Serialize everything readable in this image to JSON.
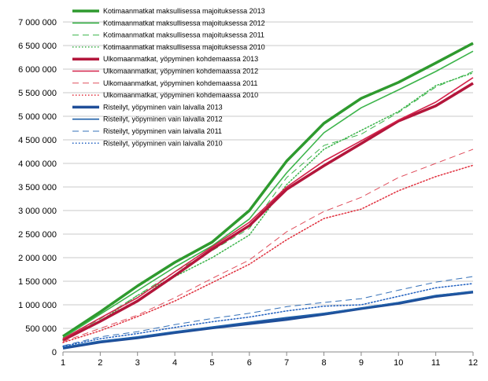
{
  "chart_data": {
    "type": "line",
    "title": "",
    "xlabel": "",
    "ylabel": "",
    "x": [
      1,
      2,
      3,
      4,
      5,
      6,
      7,
      8,
      9,
      10,
      11,
      12
    ],
    "x_tick_labels": [
      "1",
      "2",
      "3",
      "4",
      "5",
      "6",
      "7",
      "8",
      "9",
      "10",
      "11",
      "12"
    ],
    "xlim": [
      1,
      12
    ],
    "ylim": [
      0,
      7000000
    ],
    "y_ticks": [
      0,
      500000,
      1000000,
      1500000,
      2000000,
      2500000,
      3000000,
      3500000,
      4000000,
      4500000,
      5000000,
      5500000,
      6000000,
      6500000,
      7000000
    ],
    "y_tick_labels": [
      "0",
      "500 000",
      "1 000 000",
      "1 500 000",
      "2 000 000",
      "2 500 000",
      "3 000 000",
      "3 500 000",
      "4 000 000",
      "4 500 000",
      "5 000 000",
      "5 500 000",
      "6 000 000",
      "6 500 000",
      "7 000 000"
    ],
    "grid": true,
    "legend_position": "top-left inside",
    "series": [
      {
        "name": "Kotimaanmatkat maksullisessa majoituksessa 2013",
        "color": "#2e9a2e",
        "style": "solid-thick",
        "values": [
          330000,
          850000,
          1400000,
          1900000,
          2330000,
          3000000,
          4050000,
          4850000,
          5380000,
          5720000,
          6130000,
          6550000
        ]
      },
      {
        "name": "Kotimaanmatkat maksullisessa majoituksessa 2012",
        "color": "#3cb44b",
        "style": "solid",
        "values": [
          300000,
          800000,
          1300000,
          1800000,
          2250000,
          2820000,
          3800000,
          4650000,
          5180000,
          5560000,
          5950000,
          6380000
        ]
      },
      {
        "name": "Kotimaanmatkat maksullisessa majoituksessa 2011",
        "color": "#3cb44b",
        "style": "dashed",
        "values": [
          280000,
          700000,
          1200000,
          1700000,
          2150000,
          2620000,
          3700000,
          4380000,
          4620000,
          5080000,
          5620000,
          5950000
        ]
      },
      {
        "name": "Kotimaanmatkat maksullisessa majoituksessa 2010",
        "color": "#3cb44b",
        "style": "dotted",
        "values": [
          250000,
          650000,
          1200000,
          1600000,
          2000000,
          2480000,
          3550000,
          4300000,
          4700000,
          5100000,
          5650000,
          5920000
        ]
      },
      {
        "name": "Ulkomaanmatkat, yöpyminen kohdemaassa 2013",
        "color": "#b3163b",
        "style": "solid-thick",
        "values": [
          250000,
          650000,
          1080000,
          1620000,
          2180000,
          2680000,
          3450000,
          3950000,
          4420000,
          4900000,
          5220000,
          5700000
        ]
      },
      {
        "name": "Ulkomaanmatkat, yöpyminen kohdemaassa 2012",
        "color": "#d4224a",
        "style": "solid",
        "values": [
          280000,
          720000,
          1150000,
          1700000,
          2230000,
          2750000,
          3500000,
          4050000,
          4480000,
          4920000,
          5300000,
          5820000
        ]
      },
      {
        "name": "Ulkomaanmatkat, yöpyminen kohdemaassa 2011",
        "color": "#e0505e",
        "style": "dashed",
        "values": [
          220000,
          500000,
          780000,
          1150000,
          1560000,
          1950000,
          2550000,
          2980000,
          3280000,
          3700000,
          4000000,
          4300000
        ]
      },
      {
        "name": "Ulkomaanmatkat, yöpyminen kohdemaassa 2010",
        "color": "#e0303e",
        "style": "dotted",
        "values": [
          200000,
          450000,
          750000,
          1080000,
          1470000,
          1860000,
          2380000,
          2830000,
          3030000,
          3420000,
          3720000,
          3960000
        ]
      },
      {
        "name": "Risteilyt, yöpyminen vain laivalla 2013",
        "color": "#1f4e99",
        "style": "solid-thick",
        "values": [
          80000,
          210000,
          300000,
          410000,
          510000,
          600000,
          690000,
          800000,
          920000,
          1030000,
          1180000,
          1270000
        ]
      },
      {
        "name": "Risteilyt, yöpyminen vain laivalla 2012",
        "color": "#1f5fa8",
        "style": "solid",
        "values": [
          100000,
          230000,
          320000,
          430000,
          530000,
          630000,
          730000,
          820000,
          930000,
          1050000,
          1200000,
          1280000
        ]
      },
      {
        "name": "Risteilyt, yöpyminen vain laivalla 2011",
        "color": "#3470b8",
        "style": "dashed",
        "values": [
          130000,
          320000,
          430000,
          580000,
          710000,
          820000,
          960000,
          1050000,
          1130000,
          1310000,
          1480000,
          1600000
        ]
      },
      {
        "name": "Risteilyt, yöpyminen vain laivalla 2010",
        "color": "#2060c0",
        "style": "dotted",
        "values": [
          120000,
          280000,
          390000,
          520000,
          640000,
          740000,
          870000,
          970000,
          1000000,
          1180000,
          1360000,
          1450000
        ]
      }
    ]
  }
}
